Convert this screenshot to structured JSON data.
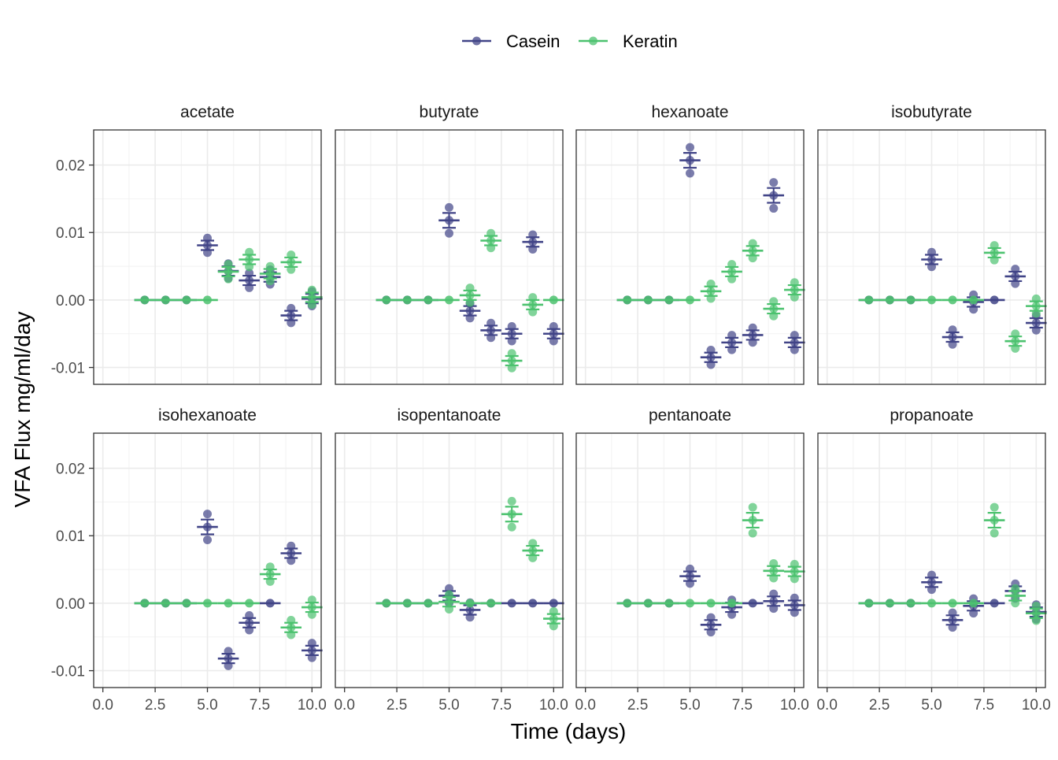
{
  "chart_data": {
    "type": "scatter",
    "subtype": "faceted mean ± standard error with replicate points",
    "xlabel": "Time (days)",
    "ylabel": "VFA Flux mg/ml/day",
    "xlim": [
      0,
      10
    ],
    "ylim": [
      -0.0125,
      0.0252
    ],
    "xticks": [
      "0.0",
      "2.5",
      "5.0",
      "7.5",
      "10.0"
    ],
    "yticks": [
      "-0.01",
      "0.00",
      "0.01",
      "0.02"
    ],
    "grid": true,
    "legend": {
      "position": "top",
      "entries": [
        "Casein",
        "Keratin"
      ]
    },
    "series_colors": {
      "Casein": "#414487",
      "Keratin": "#4CC26F"
    },
    "days": [
      2,
      3,
      4,
      5,
      6,
      7,
      8,
      9,
      10
    ],
    "panels": [
      {
        "title": "acetate",
        "series": [
          {
            "name": "Casein",
            "mean": [
              0,
              0,
              0,
              0.0081,
              0.0043,
              0.0029,
              0.0034,
              -0.0023,
              0.0002
            ]
          },
          {
            "name": "Keratin",
            "mean": [
              0,
              0,
              0,
              0,
              0.0042,
              0.006,
              0.0039,
              0.0056,
              0.0004
            ]
          }
        ]
      },
      {
        "title": "butyrate",
        "series": [
          {
            "name": "Casein",
            "mean": [
              0,
              0,
              0,
              0.0118,
              -0.0016,
              -0.0045,
              -0.005,
              0.0086,
              -0.005
            ]
          },
          {
            "name": "Keratin",
            "mean": [
              0,
              0,
              0,
              0,
              0.0007,
              0.0088,
              -0.009,
              -0.0007,
              0
            ]
          }
        ]
      },
      {
        "title": "hexanoate",
        "series": [
          {
            "name": "Casein",
            "mean": [
              0,
              0,
              0,
              0.0207,
              -0.0085,
              -0.0063,
              -0.0052,
              0.0155,
              -0.0063
            ]
          },
          {
            "name": "Keratin",
            "mean": [
              0,
              0,
              0,
              0,
              0.0013,
              0.0042,
              0.0073,
              -0.0013,
              0.0015
            ]
          }
        ]
      },
      {
        "title": "isobutyrate",
        "series": [
          {
            "name": "Casein",
            "mean": [
              0,
              0,
              0,
              0.006,
              -0.0055,
              -0.0003,
              0,
              0.0035,
              -0.0034
            ]
          },
          {
            "name": "Keratin",
            "mean": [
              0,
              0,
              0,
              0,
              0,
              0,
              0.007,
              -0.0061,
              -0.0009
            ]
          }
        ]
      },
      {
        "title": "isohexanoate",
        "series": [
          {
            "name": "Casein",
            "mean": [
              0,
              0,
              0,
              0.0113,
              -0.0082,
              -0.0029,
              0,
              0.0074,
              -0.007
            ]
          },
          {
            "name": "Keratin",
            "mean": [
              0,
              0,
              0,
              0,
              0,
              0,
              0.0043,
              -0.0036,
              -0.0006
            ]
          }
        ]
      },
      {
        "title": "isopentanoate",
        "series": [
          {
            "name": "Casein",
            "mean": [
              0,
              0,
              0,
              0.0011,
              -0.001,
              0,
              0,
              0,
              0
            ]
          },
          {
            "name": "Keratin",
            "mean": [
              0,
              0,
              0,
              0.0002,
              0,
              0,
              0.0132,
              0.0078,
              -0.0023
            ]
          }
        ]
      },
      {
        "title": "pentanoate",
        "series": [
          {
            "name": "Casein",
            "mean": [
              0,
              0,
              0,
              0.004,
              -0.0032,
              -0.0006,
              0,
              0.0003,
              -0.0003
            ]
          },
          {
            "name": "Keratin",
            "mean": [
              0,
              0,
              0,
              0,
              0,
              0,
              0.0123,
              0.0048,
              0.0047
            ]
          }
        ]
      },
      {
        "title": "propanoate",
        "series": [
          {
            "name": "Casein",
            "mean": [
              0,
              0,
              0,
              0.0031,
              -0.0025,
              -0.0004,
              0,
              0.0018,
              -0.0013
            ]
          },
          {
            "name": "Keratin",
            "mean": [
              0,
              0,
              0,
              0,
              0,
              0,
              0.0123,
              0.0011,
              -0.0015
            ]
          }
        ]
      }
    ]
  }
}
